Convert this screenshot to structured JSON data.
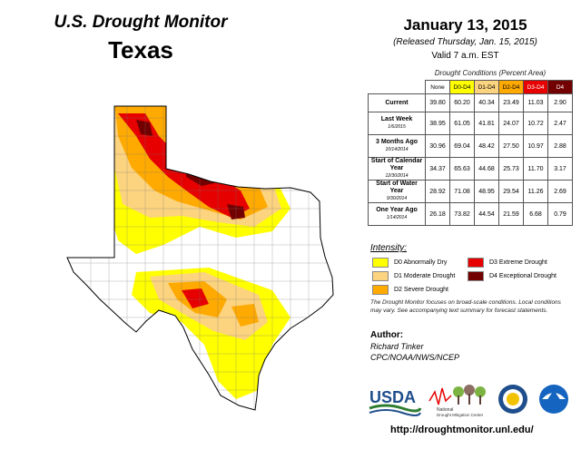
{
  "header": {
    "title": "U.S. Drought Monitor",
    "state": "Texas",
    "date": "January 13, 2015",
    "released": "(Released Thursday, Jan. 15, 2015)",
    "valid": "Valid 7 a.m. EST"
  },
  "table": {
    "caption": "Drought Conditions (Percent Area)",
    "columns": [
      "None",
      "D0-D4",
      "D1-D4",
      "D2-D4",
      "D3-D4",
      "D4"
    ],
    "column_colors": [
      "#ffffff",
      "#ffff00",
      "#fcd37f",
      "#ffaa00",
      "#e60000",
      "#730000"
    ],
    "rows": [
      {
        "label": "Current",
        "sub": "",
        "values": [
          "39.80",
          "60.20",
          "40.34",
          "23.49",
          "11.03",
          "2.90"
        ]
      },
      {
        "label": "Last Week",
        "sub": "1/6/2015",
        "values": [
          "38.95",
          "61.05",
          "41.81",
          "24.07",
          "10.72",
          "2.47"
        ]
      },
      {
        "label": "3 Months Ago",
        "sub": "10/14/2014",
        "values": [
          "30.96",
          "69.04",
          "48.42",
          "27.50",
          "10.97",
          "2.88"
        ]
      },
      {
        "label": "Start of Calendar Year",
        "sub": "12/30/2014",
        "values": [
          "34.37",
          "65.63",
          "44.68",
          "25.73",
          "11.70",
          "3.17"
        ]
      },
      {
        "label": "Start of Water Year",
        "sub": "9/30/2014",
        "values": [
          "28.92",
          "71.08",
          "48.95",
          "29.54",
          "11.26",
          "2.69"
        ]
      },
      {
        "label": "One Year Ago",
        "sub": "1/14/2014",
        "values": [
          "26.18",
          "73.82",
          "44.54",
          "21.59",
          "6.68",
          "0.79"
        ]
      }
    ]
  },
  "legend": {
    "title": "Intensity:",
    "items": [
      {
        "label": "D0 Abnormally Dry",
        "color": "#ffff00"
      },
      {
        "label": "D1 Moderate Drought",
        "color": "#fcd37f"
      },
      {
        "label": "D2 Severe Drought",
        "color": "#ffaa00"
      },
      {
        "label": "D3 Extreme Drought",
        "color": "#e60000"
      },
      {
        "label": "D4 Exceptional Drought",
        "color": "#730000"
      }
    ]
  },
  "note": "The Drought Monitor focuses on broad-scale conditions. Local conditions may vary. See accompanying text summary for forecast statements.",
  "author": {
    "heading": "Author:",
    "name": "Richard Tinker",
    "org": "CPC/NOAA/NWS/NCEP"
  },
  "logos": {
    "usda": "USDA",
    "ndmc_line1": "National",
    "ndmc_line2": "Drought Mitigation Center"
  },
  "url": "http://droughtmonitor.unl.edu/",
  "colors": {
    "none": "#ffffff",
    "d0": "#ffff00",
    "d1": "#fcd37f",
    "d2": "#ffaa00",
    "d3": "#e60000",
    "d4": "#730000"
  }
}
